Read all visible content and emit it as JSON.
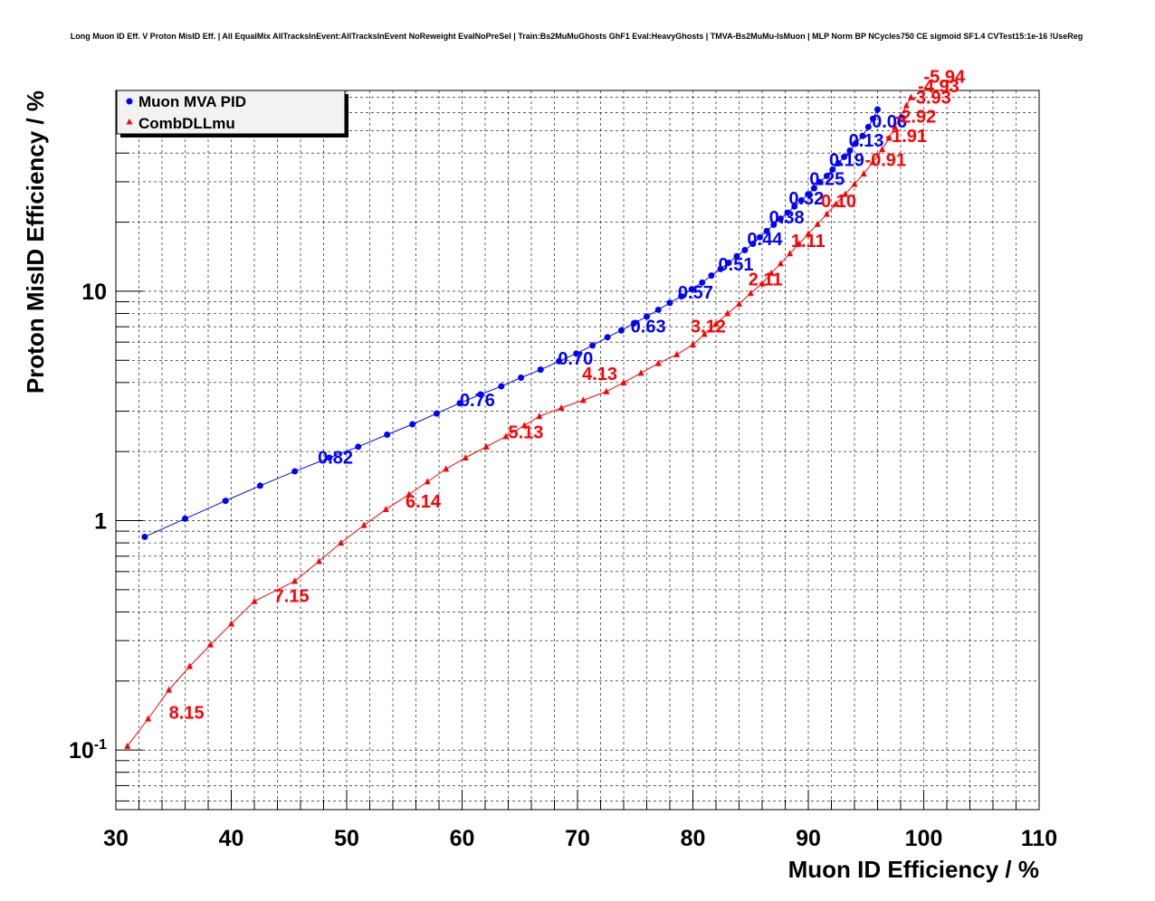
{
  "chart_data": {
    "type": "line",
    "title": "Long Muon ID Eff. V Proton MisID Eff. | All EqualMix AllTracksInEvent:AllTracksInEvent NoReweight EvalNoPreSel | Train:Bs2MuMuGhosts GhF1 Eval:HeavyGhosts | TMVA-Bs2MuMu-IsMuon | MLP Norm BP NCycles750 CE sigmoid SF1.4 CVTest15:1e-16 !UseReg",
    "xlabel": "Muon ID Efficiency / %",
    "ylabel": "Proton MisID Efficiency / %",
    "xlim": [
      30,
      110
    ],
    "ylim": [
      0.055,
      75
    ],
    "y_scale": "log",
    "grid": true,
    "legend_position": "top-left",
    "x_tick_labels": [
      "30",
      "40",
      "50",
      "60",
      "70",
      "80",
      "90",
      "100",
      "110"
    ],
    "y_tick_labels": [
      {
        "value": 0.1,
        "base": "10",
        "exp": "-1"
      },
      {
        "value": 1,
        "text": "1"
      },
      {
        "value": 10,
        "text": "10"
      }
    ],
    "series": [
      {
        "name": "Muon MVA PID",
        "color": "#0000ff",
        "marker": "circle",
        "x": [
          32.5,
          36.0,
          39.5,
          42.5,
          45.5,
          48.5,
          51.0,
          53.5,
          55.7,
          57.8,
          59.8,
          61.6,
          63.4,
          65.1,
          66.8,
          68.4,
          69.9,
          71.3,
          72.6,
          73.8,
          74.9,
          76.0,
          77.0,
          78.0,
          79.0,
          79.9,
          80.8,
          81.6,
          82.4,
          83.1,
          83.8,
          84.5,
          85.2,
          85.8,
          86.4,
          87.0,
          87.6,
          88.2,
          88.8,
          89.4,
          90.0,
          90.5,
          91.0,
          91.6,
          92.1,
          92.6,
          93.1,
          93.6,
          94.1,
          94.7,
          95.2,
          95.6,
          96.0
        ],
        "y": [
          0.85,
          1.02,
          1.22,
          1.42,
          1.64,
          1.88,
          2.1,
          2.37,
          2.63,
          2.93,
          3.25,
          3.55,
          3.85,
          4.2,
          4.55,
          4.95,
          5.35,
          5.8,
          6.3,
          6.75,
          7.25,
          7.75,
          8.3,
          8.9,
          9.5,
          10.2,
          10.9,
          11.7,
          12.5,
          13.3,
          14.2,
          15.1,
          16.1,
          17.2,
          18.3,
          19.5,
          20.7,
          22.0,
          23.4,
          24.9,
          26.5,
          28.1,
          29.9,
          31.8,
          33.9,
          36.1,
          38.5,
          41.0,
          44.0,
          47.5,
          52.0,
          56.5,
          62.0
        ],
        "labels": [
          {
            "x": 47.5,
            "y": 1.77,
            "text": "0.82"
          },
          {
            "x": 59.8,
            "y": 3.15,
            "text": "0.76"
          },
          {
            "x": 68.3,
            "y": 4.8,
            "text": "0.70"
          },
          {
            "x": 74.6,
            "y": 6.6,
            "text": "0.63"
          },
          {
            "x": 78.7,
            "y": 9.3,
            "text": "0.57"
          },
          {
            "x": 82.2,
            "y": 12.3,
            "text": "0.51"
          },
          {
            "x": 84.7,
            "y": 15.9,
            "text": "0.44"
          },
          {
            "x": 86.6,
            "y": 19.7,
            "text": "0.38"
          },
          {
            "x": 88.3,
            "y": 23.9,
            "text": "0.32"
          },
          {
            "x": 90.1,
            "y": 29.1,
            "text": "0.25"
          },
          {
            "x": 91.8,
            "y": 35.2,
            "text": "0.19"
          },
          {
            "x": 93.5,
            "y": 42.7,
            "text": "0.13"
          },
          {
            "x": 95.5,
            "y": 51.8,
            "text": "0.06"
          }
        ]
      },
      {
        "name": "CombDLLmu",
        "color": "#ff0000",
        "marker": "triangle",
        "x": [
          31.0,
          32.8,
          34.6,
          36.4,
          38.2,
          40.0,
          42.0,
          45.5,
          47.6,
          49.5,
          51.5,
          53.4,
          55.4,
          57.0,
          58.6,
          60.3,
          62.1,
          63.8,
          65.4,
          66.7,
          68.6,
          70.5,
          72.5,
          74.0,
          75.5,
          77.0,
          78.6,
          80.0,
          81.0,
          82.0,
          83.0,
          84.0,
          85.0,
          86.0,
          86.8,
          87.6,
          88.4,
          89.2,
          90.0,
          90.8,
          91.6,
          92.4,
          93.2,
          94.0,
          94.8,
          95.6,
          96.4,
          97.0,
          97.5,
          98.0,
          98.5,
          98.9
        ],
        "y": [
          0.104,
          0.137,
          0.183,
          0.232,
          0.288,
          0.355,
          0.445,
          0.545,
          0.665,
          0.8,
          0.955,
          1.12,
          1.3,
          1.48,
          1.68,
          1.88,
          2.1,
          2.33,
          2.6,
          2.85,
          3.1,
          3.35,
          3.65,
          4.0,
          4.4,
          4.85,
          5.3,
          5.85,
          6.5,
          7.2,
          8.0,
          8.8,
          9.8,
          10.8,
          12.0,
          13.2,
          14.6,
          16.1,
          17.8,
          19.6,
          21.7,
          24.0,
          26.5,
          29.3,
          32.5,
          36.5,
          41.5,
          46.5,
          52.0,
          58.0,
          64.5,
          70.0
        ],
        "labels": [
          {
            "x": 34.6,
            "y": 0.137,
            "text": "8.15"
          },
          {
            "x": 43.7,
            "y": 0.441,
            "text": "7.15"
          },
          {
            "x": 55.1,
            "y": 1.14,
            "text": "6.14"
          },
          {
            "x": 64.0,
            "y": 2.29,
            "text": "5.13"
          },
          {
            "x": 70.4,
            "y": 4.1,
            "text": "4.13"
          },
          {
            "x": 79.8,
            "y": 6.6,
            "text": "3.12"
          },
          {
            "x": 84.8,
            "y": 10.6,
            "text": "2.11"
          },
          {
            "x": 88.5,
            "y": 15.6,
            "text": "1.11"
          },
          {
            "x": 91.1,
            "y": 23.3,
            "text": "0.10"
          },
          {
            "x": 94.9,
            "y": 35.2,
            "text": "-0.91"
          },
          {
            "x": 96.7,
            "y": 44.6,
            "text": "-1.91"
          },
          {
            "x": 97.5,
            "y": 54.4,
            "text": "-2.92"
          },
          {
            "x": 98.8,
            "y": 65.8,
            "text": "-3.93"
          },
          {
            "x": 99.5,
            "y": 73.5,
            "text": "-4.93"
          },
          {
            "x": 100.0,
            "y": 81.0,
            "text": "-5.94"
          }
        ]
      }
    ]
  }
}
